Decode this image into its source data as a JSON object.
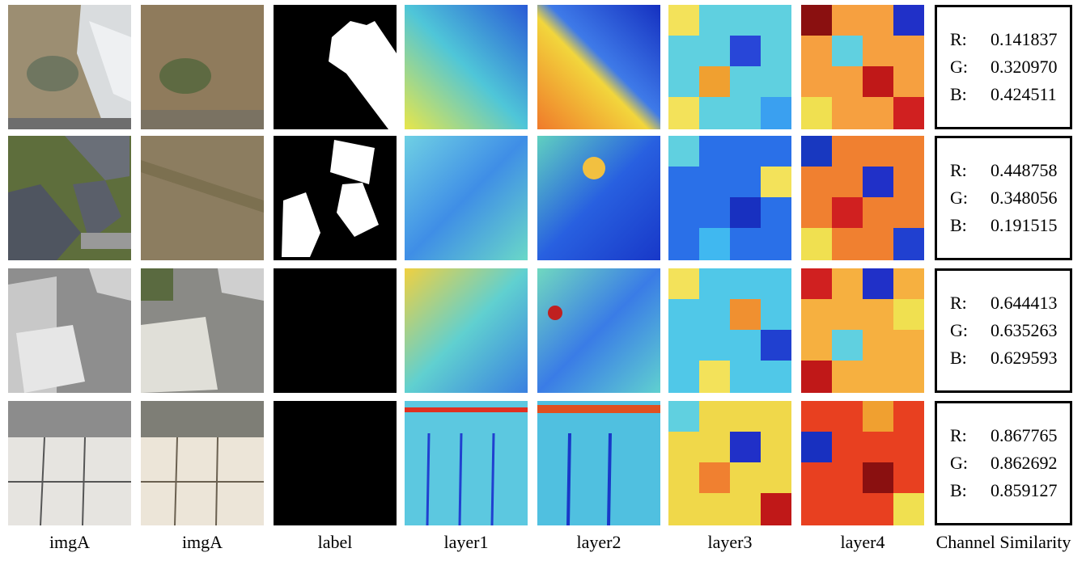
{
  "columns": [
    "imgA",
    "imgA",
    "label",
    "layer1",
    "layer2",
    "layer3",
    "layer4",
    "Channel Similarity"
  ],
  "rows": [
    {
      "similarity": {
        "R": "0.141837",
        "G": "0.320970",
        "B": "0.424511"
      }
    },
    {
      "similarity": {
        "R": "0.448758",
        "G": "0.348056",
        "B": "0.191515"
      }
    },
    {
      "similarity": {
        "R": "0.644413",
        "G": "0.635263",
        "B": "0.629593"
      }
    },
    {
      "similarity": {
        "R": "0.867765",
        "G": "0.862692",
        "B": "0.859127"
      }
    }
  ],
  "channel_labels": {
    "R": "R:",
    "G": "G:",
    "B": "B:"
  },
  "colors": {
    "label_foreground": "#ffffff",
    "label_background": "#000000",
    "box_border": "#000000"
  }
}
